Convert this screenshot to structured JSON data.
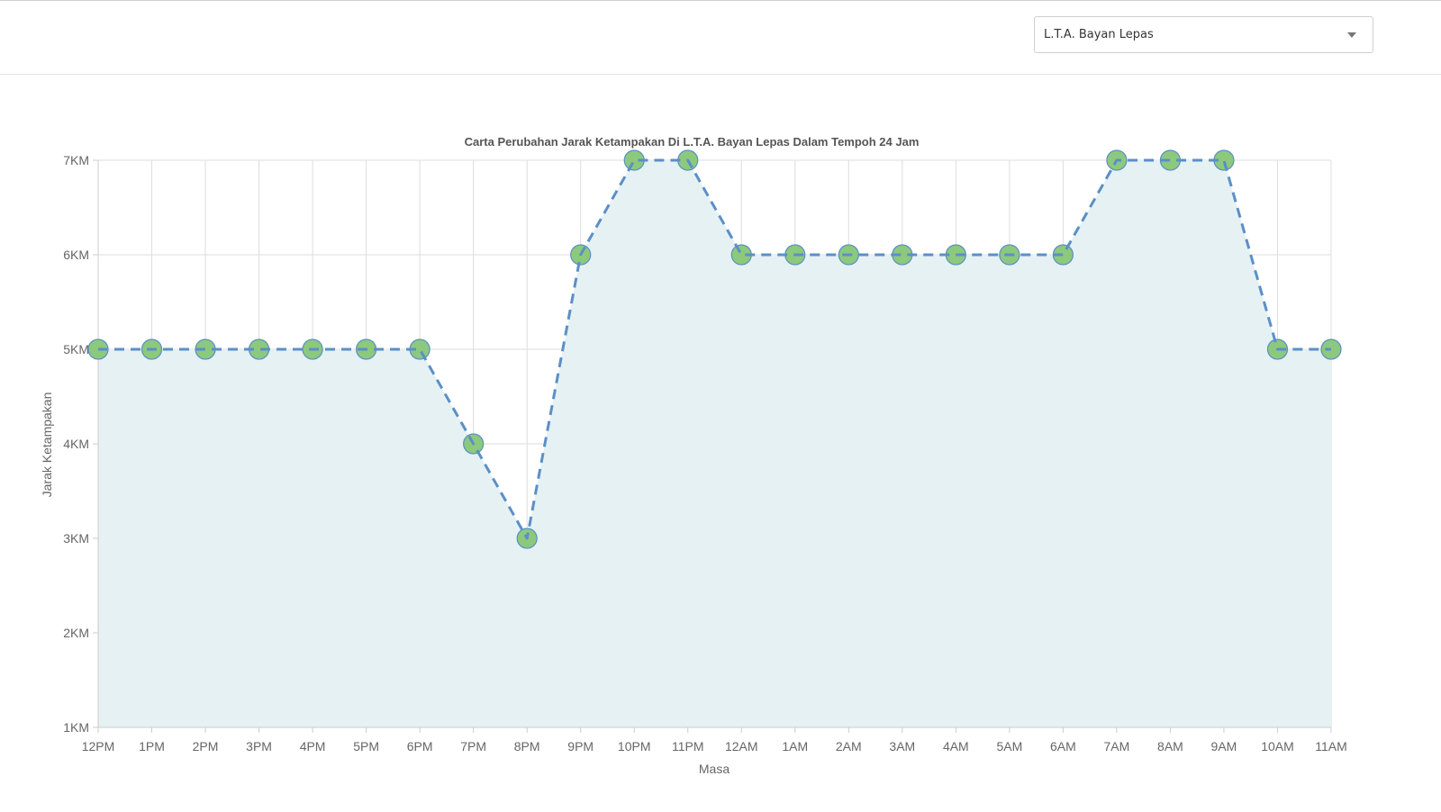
{
  "station_select": {
    "selected": "L.T.A. Bayan Lepas"
  },
  "chart_data": {
    "type": "line",
    "title": "Carta Perubahan Jarak Ketampakan Di L.T.A. Bayan Lepas Dalam Tempoh 24 Jam",
    "xlabel": "Masa",
    "ylabel": "Jarak Ketampakan",
    "categories": [
      "12PM",
      "1PM",
      "2PM",
      "3PM",
      "4PM",
      "5PM",
      "6PM",
      "7PM",
      "8PM",
      "9PM",
      "10PM",
      "11PM",
      "12AM",
      "1AM",
      "2AM",
      "3AM",
      "4AM",
      "5AM",
      "6AM",
      "7AM",
      "8AM",
      "9AM",
      "10AM",
      "11AM"
    ],
    "values": [
      5,
      5,
      5,
      5,
      5,
      5,
      5,
      4,
      3,
      6,
      7,
      7,
      6,
      6,
      6,
      6,
      6,
      6,
      6,
      7,
      7,
      7,
      5,
      5
    ],
    "ylim": [
      1,
      7
    ],
    "ytick_labels": [
      "1KM",
      "2KM",
      "3KM",
      "4KM",
      "5KM",
      "6KM",
      "7KM"
    ],
    "grid": true,
    "line_style": "dashed",
    "filled_area": true,
    "colors": {
      "line": "#5b8fc7",
      "marker_fill": "#8cc97c",
      "marker_stroke": "#5b8fc7",
      "area_fill": "#e6f1f4",
      "grid": "#dddddd"
    }
  }
}
